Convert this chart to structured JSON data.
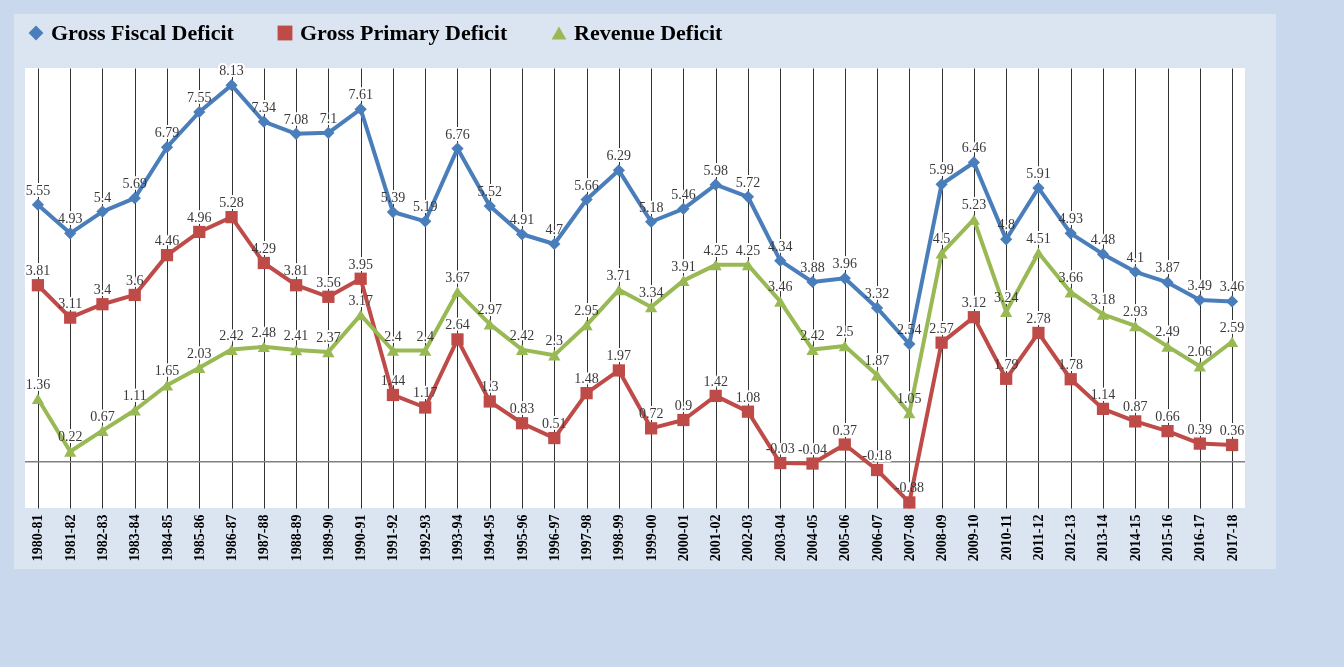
{
  "chart_data": {
    "type": "line",
    "categories": [
      "1980-81",
      "1981-82",
      "1982-83",
      "1983-84",
      "1984-85",
      "1985-86",
      "1986-87",
      "1987-88",
      "1988-89",
      "1989-90",
      "1990-91",
      "1991-92",
      "1992-93",
      "1993-94",
      "1994-95",
      "1995-96",
      "1996-97",
      "1997-98",
      "1998-99",
      "1999-00",
      "2000-01",
      "2001-02",
      "2002-03",
      "2003-04",
      "2004-05",
      "2005-06",
      "2006-07",
      "2007-08",
      "2008-09",
      "2009-10",
      "2010-11",
      "2011-12",
      "2012-13",
      "2013-14",
      "2014-15",
      "2015-16",
      "2016-17",
      "2017-18"
    ],
    "series": [
      {
        "name": "Gross Fiscal Deficit",
        "color": "#4a7ebb",
        "marker": "diamond",
        "values": [
          5.55,
          4.93,
          5.4,
          5.69,
          6.79,
          7.55,
          8.13,
          7.34,
          7.08,
          7.1,
          7.61,
          5.39,
          5.19,
          6.76,
          5.52,
          4.91,
          4.7,
          5.66,
          6.29,
          5.18,
          5.46,
          5.98,
          5.72,
          4.34,
          3.88,
          3.96,
          3.32,
          2.54,
          5.99,
          6.46,
          4.8,
          5.91,
          4.93,
          4.48,
          4.1,
          3.87,
          3.49,
          3.46
        ]
      },
      {
        "name": "Gross Primary Deficit",
        "color": "#be4b48",
        "marker": "square",
        "values": [
          3.81,
          3.11,
          3.4,
          3.6,
          4.46,
          4.96,
          5.28,
          4.29,
          3.81,
          3.56,
          3.95,
          1.44,
          1.17,
          2.64,
          1.3,
          0.83,
          0.51,
          1.48,
          1.97,
          0.72,
          0.9,
          1.42,
          1.08,
          -0.03,
          -0.04,
          0.37,
          -0.18,
          -0.88,
          2.57,
          3.12,
          1.79,
          2.78,
          1.78,
          1.14,
          0.87,
          0.66,
          0.39,
          0.36
        ]
      },
      {
        "name": "Revenue Deficit",
        "color": "#98b954",
        "marker": "triangle",
        "values": [
          1.36,
          0.22,
          0.67,
          1.11,
          1.65,
          2.03,
          2.42,
          2.48,
          2.41,
          2.37,
          3.17,
          2.4,
          2.4,
          3.67,
          2.97,
          2.42,
          2.3,
          2.95,
          3.71,
          3.34,
          3.91,
          4.25,
          4.25,
          3.46,
          2.42,
          2.5,
          1.87,
          1.05,
          4.5,
          5.23,
          3.24,
          4.51,
          3.66,
          3.18,
          2.93,
          2.49,
          2.06,
          2.59
        ]
      }
    ],
    "ylim": [
      -1,
      8.5
    ],
    "tick_labels": "x",
    "grid": "x",
    "legend": "top",
    "data_labels": true,
    "ref_lines": [
      {
        "axis": "y",
        "value": 0,
        "color": "#808080"
      }
    ]
  }
}
